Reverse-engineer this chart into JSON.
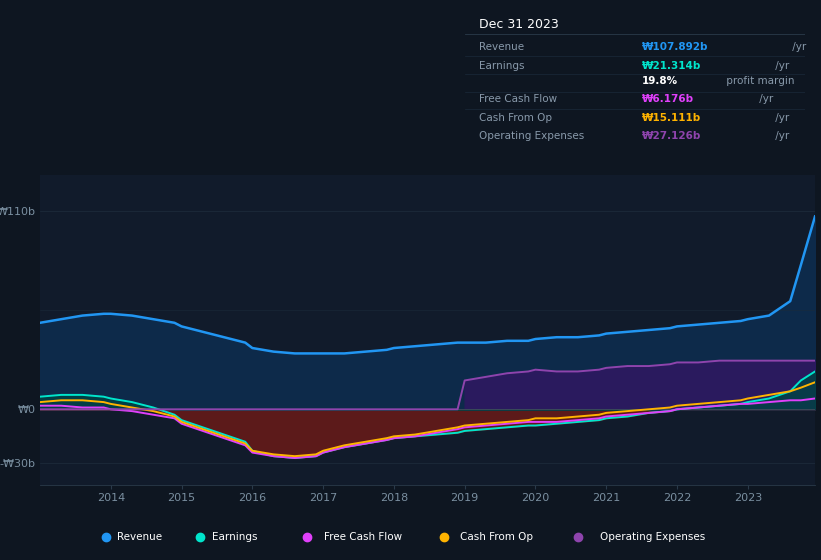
{
  "background_color": "#0e1621",
  "plot_bg_color": "#111b2b",
  "grid_color": "#1e2d3d",
  "ylim": [
    -42,
    130
  ],
  "yticks": [
    -30,
    0,
    110
  ],
  "ytick_labels": [
    "-₩30b",
    "₩0",
    "₩110b"
  ],
  "xtick_years": [
    2014,
    2015,
    2016,
    2017,
    2018,
    2019,
    2020,
    2021,
    2022,
    2023
  ],
  "revenue_color": "#2196f3",
  "earnings_color": "#00e5cc",
  "fcf_color": "#e040fb",
  "cashfromop_color": "#ffb300",
  "opex_color": "#8e44ad",
  "revenue_fill": "#0d2a4a",
  "earnings_neg_fill": "#5c1a1a",
  "earnings_pos_fill": "#004444",
  "opex_fill": "#2a1a5e",
  "legend": [
    {
      "label": "Revenue",
      "color": "#2196f3"
    },
    {
      "label": "Earnings",
      "color": "#00e5cc"
    },
    {
      "label": "Free Cash Flow",
      "color": "#e040fb"
    },
    {
      "label": "Cash From Op",
      "color": "#ffb300"
    },
    {
      "label": "Operating Expenses",
      "color": "#8e44ad"
    }
  ],
  "info_box": {
    "date": "Dec 31 2023",
    "rows": [
      {
        "label": "Revenue",
        "value": "₩107.892b",
        "unit": " /yr",
        "vc": "#2196f3",
        "bold": true
      },
      {
        "label": "Earnings",
        "value": "₩21.314b",
        "unit": " /yr",
        "vc": "#00e5cc",
        "bold": true
      },
      {
        "label": "",
        "value": "19.8%",
        "unit": " profit margin",
        "vc": "#ffffff",
        "bold": true
      },
      {
        "label": "Free Cash Flow",
        "value": "₩6.176b",
        "unit": " /yr",
        "vc": "#e040fb",
        "bold": true
      },
      {
        "label": "Cash From Op",
        "value": "₩15.111b",
        "unit": " /yr",
        "vc": "#ffb300",
        "bold": true
      },
      {
        "label": "Operating Expenses",
        "value": "₩27.126b",
        "unit": " /yr",
        "vc": "#8e44ad",
        "bold": true
      }
    ]
  },
  "years": [
    2013.0,
    2013.3,
    2013.6,
    2013.9,
    2014.0,
    2014.3,
    2014.6,
    2014.9,
    2015.0,
    2015.3,
    2015.6,
    2015.9,
    2016.0,
    2016.3,
    2016.6,
    2016.9,
    2017.0,
    2017.3,
    2017.6,
    2017.9,
    2018.0,
    2018.3,
    2018.6,
    2018.9,
    2019.0,
    2019.3,
    2019.6,
    2019.9,
    2020.0,
    2020.3,
    2020.6,
    2020.9,
    2021.0,
    2021.3,
    2021.6,
    2021.9,
    2022.0,
    2022.3,
    2022.6,
    2022.9,
    2023.0,
    2023.3,
    2023.6,
    2023.75,
    2023.95
  ],
  "revenue": [
    48,
    50,
    52,
    53,
    53,
    52,
    50,
    48,
    46,
    43,
    40,
    37,
    34,
    32,
    31,
    31,
    31,
    31,
    32,
    33,
    34,
    35,
    36,
    37,
    37,
    37,
    38,
    38,
    39,
    40,
    40,
    41,
    42,
    43,
    44,
    45,
    46,
    47,
    48,
    49,
    50,
    52,
    60,
    80,
    107
  ],
  "earnings": [
    7,
    8,
    8,
    7,
    6,
    4,
    1,
    -3,
    -6,
    -10,
    -14,
    -18,
    -23,
    -26,
    -27,
    -26,
    -24,
    -21,
    -19,
    -17,
    -16,
    -15,
    -14,
    -13,
    -12,
    -11,
    -10,
    -9,
    -9,
    -8,
    -7,
    -6,
    -5,
    -4,
    -2,
    -1,
    0,
    1,
    2,
    3,
    4,
    6,
    10,
    16,
    21
  ],
  "fcf": [
    2,
    2,
    1,
    1,
    0,
    -1,
    -3,
    -5,
    -8,
    -12,
    -16,
    -20,
    -24,
    -26,
    -27,
    -26,
    -24,
    -21,
    -19,
    -17,
    -16,
    -15,
    -13,
    -11,
    -10,
    -9,
    -8,
    -7,
    -7,
    -7,
    -6,
    -5,
    -4,
    -3,
    -2,
    -1,
    0,
    1,
    2,
    3,
    3,
    4,
    5,
    5,
    6
  ],
  "cashfromop": [
    4,
    5,
    5,
    4,
    3,
    1,
    -1,
    -4,
    -7,
    -11,
    -15,
    -19,
    -23,
    -25,
    -26,
    -25,
    -23,
    -20,
    -18,
    -16,
    -15,
    -14,
    -12,
    -10,
    -9,
    -8,
    -7,
    -6,
    -5,
    -5,
    -4,
    -3,
    -2,
    -1,
    0,
    1,
    2,
    3,
    4,
    5,
    6,
    8,
    10,
    12,
    15
  ],
  "opex": [
    0,
    0,
    0,
    0,
    0,
    0,
    0,
    0,
    0,
    0,
    0,
    0,
    0,
    0,
    0,
    0,
    0,
    0,
    0,
    0,
    0,
    0,
    0,
    0,
    16,
    18,
    20,
    21,
    22,
    21,
    21,
    22,
    23,
    24,
    24,
    25,
    26,
    26,
    27,
    27,
    27,
    27,
    27,
    27,
    27
  ]
}
